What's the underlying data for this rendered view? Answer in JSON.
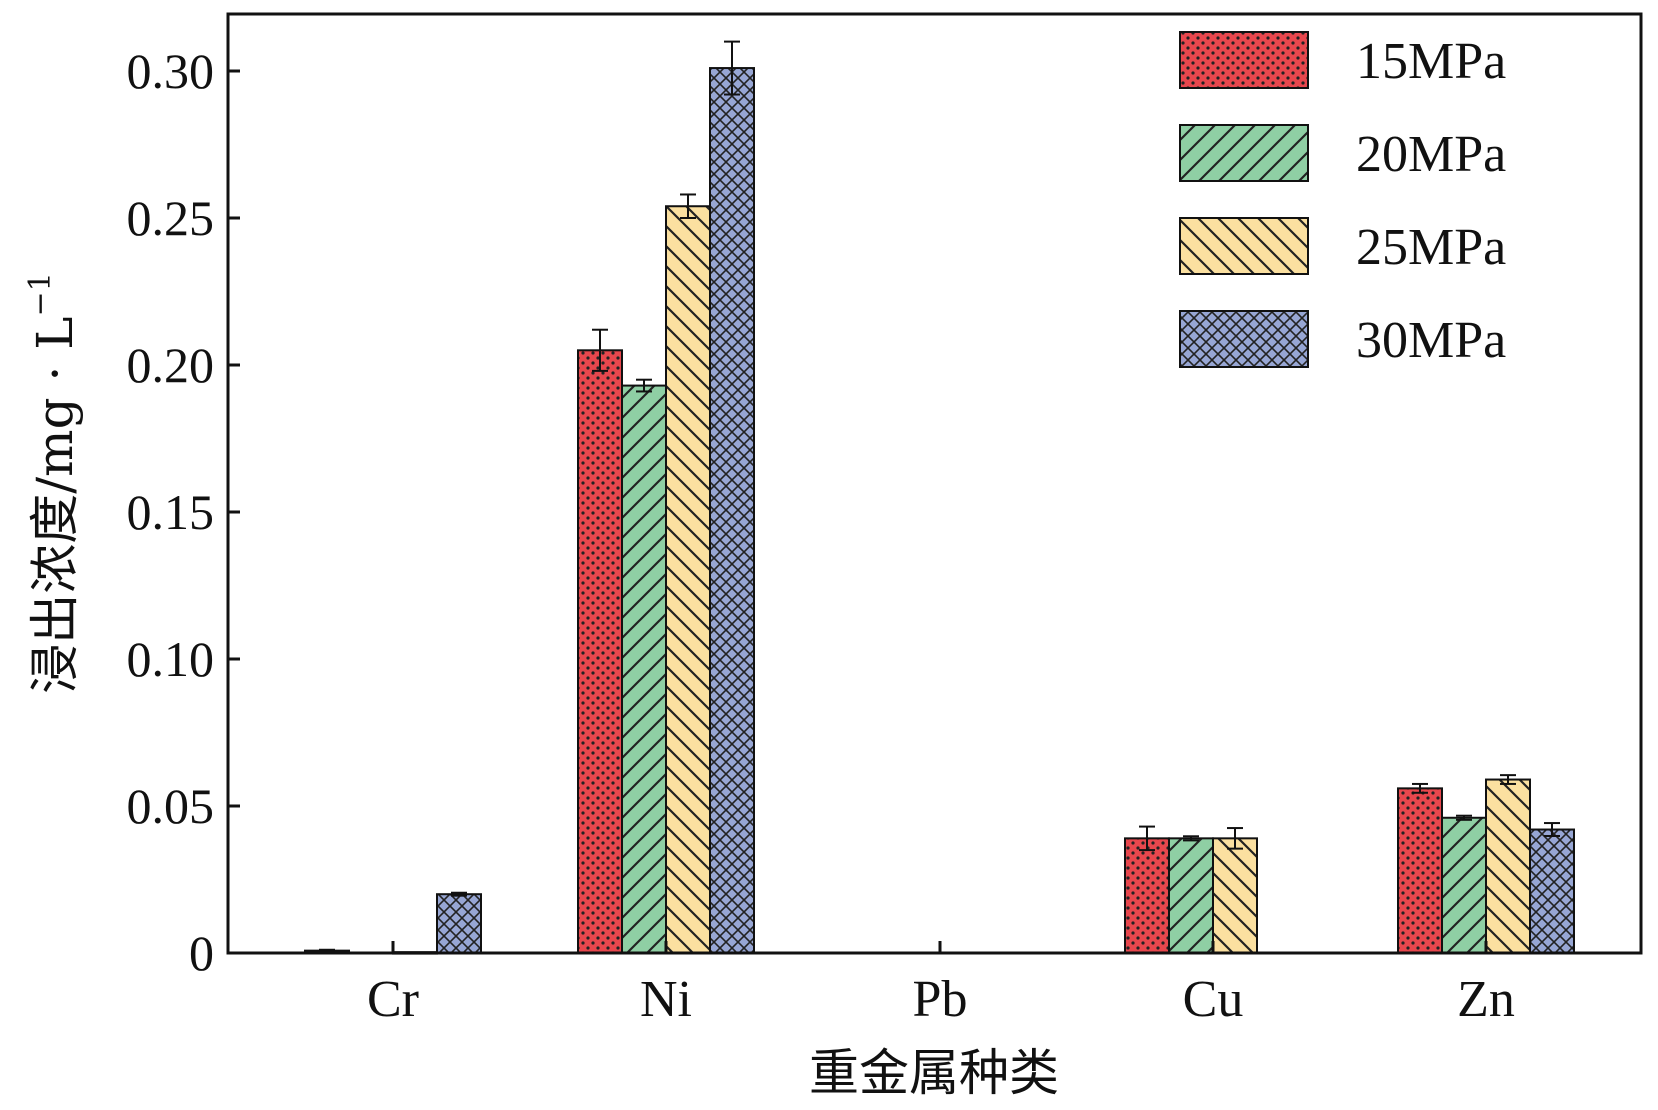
{
  "chart_data": {
    "type": "bar",
    "categories": [
      "Cr",
      "Ni",
      "Pb",
      "Cu",
      "Zn"
    ],
    "xlabel": "重金属种类",
    "ylabel": "浸出浓度/mg · L",
    "ylabel_sup": "−1",
    "ylim": [
      0,
      0.32
    ],
    "yticks": [
      0,
      0.05,
      0.1,
      0.15,
      0.2,
      0.25,
      0.3
    ],
    "ytick_labels": [
      "0",
      "0.05",
      "0.10",
      "0.15",
      "0.20",
      "0.25",
      "0.30"
    ],
    "legend_position": "top-right",
    "grid": false,
    "series": [
      {
        "name": "15MPa",
        "color": "#e8474d",
        "pattern": "dots",
        "values": [
          0.0008,
          0.205,
          0,
          0.039,
          0.056
        ],
        "errors": [
          0.0003,
          0.007,
          0,
          0.004,
          0.0015
        ]
      },
      {
        "name": "20MPa",
        "color": "#8fcfa4",
        "pattern": "forward-hatch",
        "values": [
          0,
          0.193,
          0,
          0.039,
          0.046
        ],
        "errors": [
          0,
          0.002,
          0,
          0.0007,
          0.0007
        ]
      },
      {
        "name": "25MPa",
        "color": "#fbe0a0",
        "pattern": "back-hatch",
        "values": [
          0.0003,
          0.254,
          0,
          0.039,
          0.059
        ],
        "errors": [
          0,
          0.004,
          0,
          0.0035,
          0.0015
        ]
      },
      {
        "name": "30MPa",
        "color": "#97a6d4",
        "pattern": "crosshatch",
        "values": [
          0.02,
          0.301,
          0,
          0,
          0.042
        ],
        "errors": [
          0.0005,
          0.009,
          0,
          0,
          0.0022
        ]
      }
    ]
  }
}
